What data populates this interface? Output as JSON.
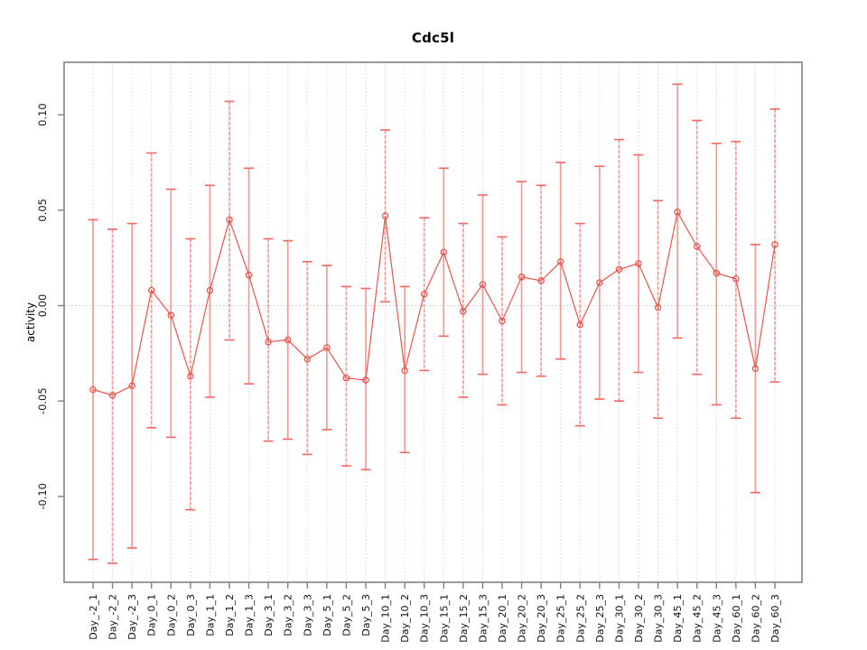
{
  "chart_data": {
    "type": "line",
    "subtype": "points-with-error-bars",
    "title": "Cdc5l",
    "xlabel": "",
    "ylabel": "activity",
    "legend_position": "none",
    "marker": "open-circle",
    "grid": {
      "vertical": "dotted line at every category",
      "horizontal": "dotted line at zero only"
    },
    "ylim": [
      -0.145,
      0.1275
    ],
    "yticks": [
      0.1,
      0.05,
      0.0,
      -0.05,
      -0.1
    ],
    "ytick_labels": [
      "0.10",
      "0.05",
      "0.00",
      "-0.05",
      "-0.10"
    ],
    "categories": [
      "Day_-2_1",
      "Day_-2_2",
      "Day_-2_3",
      "Day_0_1",
      "Day_0_2",
      "Day_0_3",
      "Day_1_1",
      "Day_1_2",
      "Day_1_3",
      "Day_3_1",
      "Day_3_2",
      "Day_3_3",
      "Day_5_1",
      "Day_5_2",
      "Day_5_3",
      "Day_10_1",
      "Day_10_2",
      "Day_10_3",
      "Day_15_1",
      "Day_15_2",
      "Day_15_3",
      "Day_20_1",
      "Day_20_2",
      "Day_20_3",
      "Day_25_1",
      "Day_25_2",
      "Day_25_3",
      "Day_30_1",
      "Day_30_2",
      "Day_30_3",
      "Day_45_1",
      "Day_45_2",
      "Day_45_3",
      "Day_60_1",
      "Day_60_2",
      "Day_60_3"
    ],
    "series": [
      {
        "name": "Cdc5l activity",
        "values": [
          -0.044,
          -0.047,
          -0.042,
          0.008,
          -0.005,
          -0.037,
          0.008,
          0.045,
          0.016,
          -0.019,
          -0.018,
          -0.028,
          -0.022,
          -0.038,
          -0.039,
          0.047,
          -0.034,
          0.006,
          0.028,
          -0.003,
          0.011,
          -0.008,
          0.015,
          0.013,
          0.023,
          -0.01,
          0.012,
          0.019,
          0.022,
          -0.001,
          0.049,
          0.031,
          0.017,
          0.014,
          -0.033,
          0.032
        ],
        "upper": [
          0.045,
          0.04,
          0.043,
          0.08,
          0.061,
          0.035,
          0.063,
          0.107,
          0.072,
          0.035,
          0.034,
          0.023,
          0.021,
          0.01,
          0.009,
          0.092,
          0.01,
          0.046,
          0.072,
          0.043,
          0.058,
          0.036,
          0.065,
          0.063,
          0.075,
          0.043,
          0.073,
          0.087,
          0.079,
          0.055,
          0.116,
          0.097,
          0.085,
          0.086,
          0.032,
          0.103
        ],
        "lower": [
          -0.133,
          -0.135,
          -0.127,
          -0.064,
          -0.069,
          -0.107,
          -0.048,
          -0.018,
          -0.041,
          -0.071,
          -0.07,
          -0.078,
          -0.065,
          -0.084,
          -0.086,
          0.002,
          -0.077,
          -0.034,
          -0.016,
          -0.048,
          -0.036,
          -0.052,
          -0.035,
          -0.037,
          -0.028,
          -0.063,
          -0.049,
          -0.05,
          -0.035,
          -0.059,
          -0.017,
          -0.036,
          -0.052,
          -0.059,
          -0.098,
          -0.04
        ]
      }
    ],
    "colors": {
      "series_line": "#f0524a",
      "marker": "#f0524a",
      "errorbar": "#f8918b",
      "errorbar_cap": "#f4665f",
      "grid": "#d8d8d8",
      "zero_line": "#c9c9c9",
      "axis": "#808080",
      "text": "#111111"
    }
  }
}
